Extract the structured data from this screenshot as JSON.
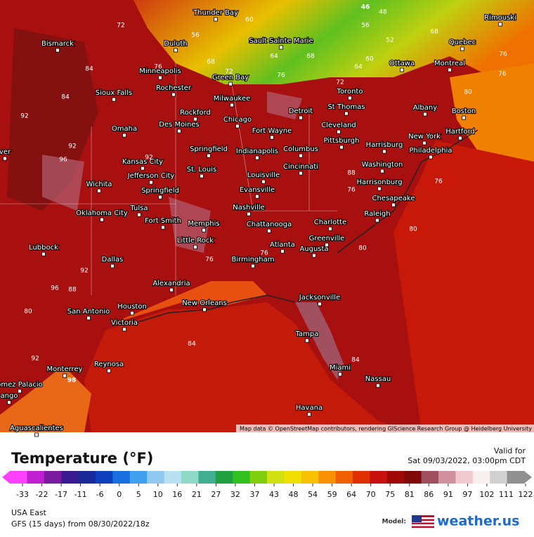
{
  "map": {
    "attribution": "Map data © OpenStreetMap contributors, rendering GIScience Research Group @ Heidelberg University",
    "cities": [
      "Thunder Bay",
      "Bismarck",
      "Duluth",
      "Sault Sainte Marie",
      "Rimouski",
      "Quebec",
      "Ottawa",
      "Montreal",
      "Minneapolis",
      "Green Bay",
      "Rochester",
      "Toronto",
      "Sioux Falls",
      "Milwaukee",
      "St Thomas",
      "Albany",
      "Boston",
      "Detroit",
      "Rockford",
      "Chicago",
      "Des Moines",
      "Omaha",
      "Cleveland",
      "Fort Wayne",
      "New York",
      "Hartford",
      "Harrisburg",
      "Pittsburgh",
      "Philadelphia",
      "Springfield",
      "Indianapolis",
      "Columbus",
      "Kansas City",
      "Washington",
      "Cincinnati",
      "St. Louis",
      "Jefferson City",
      "Louisville",
      "Harrisonburg",
      "Wichita",
      "Springfield",
      "Evansville",
      "Chesapeake",
      "Oklahoma City",
      "Tulsa",
      "Nashville",
      "Raleigh",
      "Fort Smith",
      "Memphis",
      "Chattanooga",
      "Charlotte",
      "Greenville",
      "Little Rock",
      "Atlanta",
      "Augusta",
      "Lubbock",
      "Birmingham",
      "Dallas",
      "Alexandria",
      "Jacksonville",
      "New Orleans",
      "Houston",
      "San Antonio",
      "Victoria",
      "Tampa",
      "Reynosa",
      "Monterrey",
      "Miami",
      "Nassau",
      "omez Palacio",
      "Havana",
      "Aguascalientes",
      "ver",
      "ango"
    ],
    "isotherm_labels": [
      72,
      60,
      56,
      46,
      48,
      56,
      52,
      68,
      64,
      68,
      60,
      64,
      76,
      76,
      68,
      72,
      84,
      76,
      76,
      72,
      80,
      84,
      92,
      92,
      92,
      96,
      88,
      76,
      76,
      80,
      80,
      92,
      96,
      88,
      76,
      76,
      84,
      84,
      80,
      98,
      92
    ]
  },
  "legend": {
    "title": "Temperature (°F)",
    "ticks": [
      -33,
      -22,
      -17,
      -11,
      -6,
      0,
      5,
      10,
      16,
      21,
      27,
      32,
      37,
      43,
      48,
      54,
      59,
      64,
      70,
      75,
      81,
      86,
      91,
      97,
      102,
      111,
      122
    ],
    "colors": [
      "#ff40ff",
      "#c020d0",
      "#7a1aa0",
      "#3a1a90",
      "#1a2a9a",
      "#1040c0",
      "#1a70e0",
      "#40a0f0",
      "#90c8f0",
      "#b8e0f0",
      "#90d8c8",
      "#40b090",
      "#20a040",
      "#30c020",
      "#80d010",
      "#d0e010",
      "#f0e000",
      "#f8c000",
      "#f89000",
      "#f06000",
      "#e03000",
      "#c81010",
      "#a00808",
      "#800808",
      "#a05060",
      "#d090a0",
      "#f0c8d0",
      "#f8f0f0",
      "#d0d0d0",
      "#909090"
    ],
    "valid_label": "Valid for",
    "valid_time": "Sat 09/03/2022, 03:00pm CDT"
  },
  "footer": {
    "region": "USA East",
    "run": "GFS (15 days) from  08/30/2022/18z",
    "model_label": "Model:",
    "brand": "weather.us"
  }
}
